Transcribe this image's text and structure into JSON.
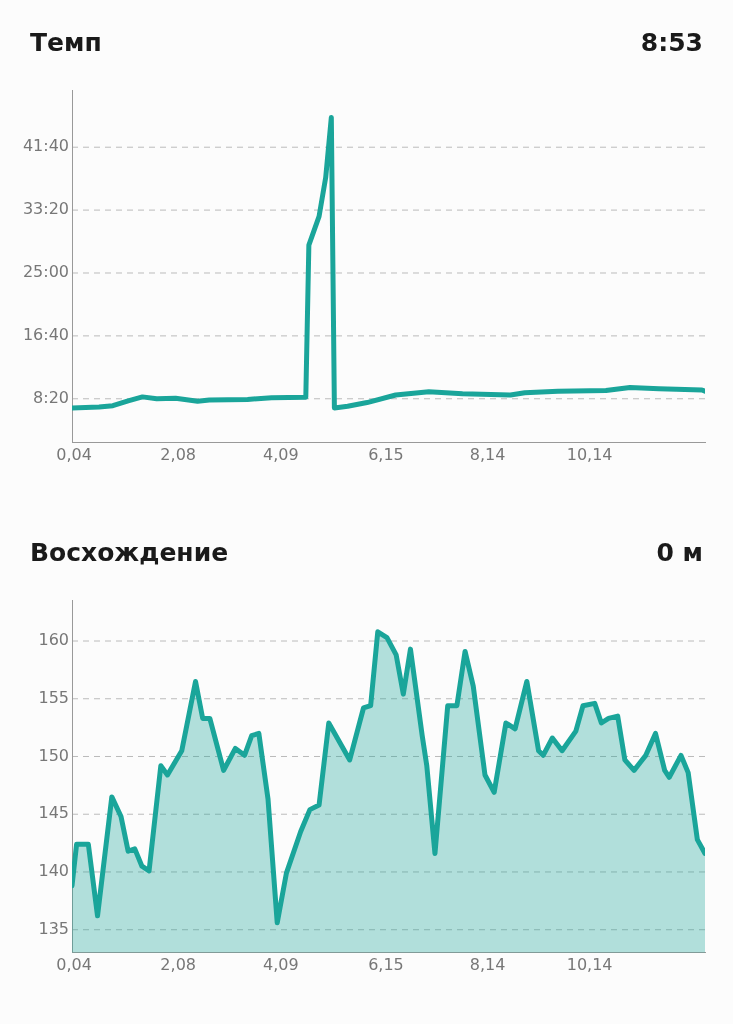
{
  "chart_data": [
    {
      "type": "line",
      "title": "Темп",
      "annotations": [
        "8:53"
      ],
      "series": [
        {
          "color": "#1aa59a",
          "x": [
            0,
            0.53,
            0.8,
            1.1,
            1.38,
            1.66,
            2.03,
            2.46,
            2.69,
            3.44,
            3.91,
            4.58,
            4.64,
            4.84,
            4.97,
            5.08,
            5.14,
            5.4,
            5.78,
            6.34,
            6.99,
            7.65,
            8.59,
            8.87,
            9.52,
            10.46,
            10.93,
            11.5,
            12.34,
            12.4
          ],
          "values": [
            426,
            434,
            445,
            484,
            515,
            500,
            504,
            480,
            490,
            495,
            508,
            512,
            1722,
            1950,
            2260,
            2736,
            426,
            440,
            470,
            530,
            555,
            540,
            530,
            548,
            560,
            565,
            590,
            580,
            570,
            560
          ]
        }
      ],
      "xlim": [
        0,
        12.4
      ],
      "xticks": [
        {
          "value": 0.04,
          "label": "0,04"
        },
        {
          "value": 2.08,
          "label": "2,08"
        },
        {
          "value": 4.09,
          "label": "4,09"
        },
        {
          "value": 6.15,
          "label": "6,15"
        },
        {
          "value": 8.14,
          "label": "8,14"
        },
        {
          "value": 10.14,
          "label": "10,14"
        }
      ],
      "ylim": [
        150,
        2950
      ],
      "yticks": [
        {
          "value": 500,
          "label": "8:20"
        },
        {
          "value": 1000,
          "label": "16:40"
        },
        {
          "value": 1500,
          "label": "25:00"
        },
        {
          "value": 2000,
          "label": "33:20"
        },
        {
          "value": 2500,
          "label": "41:40"
        }
      ],
      "grid": "y",
      "legend": false,
      "marker": "none",
      "line_style": "solid"
    },
    {
      "type": "area",
      "title": "Восхождение",
      "annotations": [
        "0 м"
      ],
      "series": [
        {
          "color": "#1aa59a",
          "x": [
            0,
            0.09,
            0.32,
            0.5,
            0.78,
            0.96,
            1.1,
            1.23,
            1.37,
            1.51,
            1.74,
            1.87,
            2.15,
            2.42,
            2.56,
            2.7,
            2.97,
            3.2,
            3.38,
            3.52,
            3.66,
            3.84,
            4.02,
            4.2,
            4.48,
            4.66,
            4.84,
            5.03,
            5.44,
            5.71,
            5.85,
            5.99,
            6.17,
            6.35,
            6.49,
            6.63,
            6.86,
            6.95,
            7.11,
            7.36,
            7.54,
            7.7,
            7.86,
            8.09,
            8.27,
            8.5,
            8.68,
            8.91,
            9.14,
            9.23,
            9.41,
            9.6,
            9.87,
            10.01,
            10.24,
            10.37,
            10.51,
            10.69,
            10.83,
            11.01,
            11.24,
            11.43,
            11.61,
            11.7,
            11.93,
            12.07,
            12.25,
            12.4
          ],
          "values": [
            138.8,
            142.4,
            142.4,
            136.2,
            146.5,
            144.8,
            141.8,
            142,
            140.5,
            140.1,
            149.2,
            148.4,
            150.5,
            156.5,
            153.3,
            153.3,
            148.8,
            150.7,
            150.1,
            151.8,
            152,
            146.3,
            135.6,
            139.9,
            143.5,
            145.4,
            145.8,
            152.9,
            149.7,
            154.2,
            154.4,
            160.8,
            160.3,
            158.8,
            155.4,
            159.3,
            151.8,
            149.2,
            141.6,
            154.4,
            154.4,
            159.1,
            156.1,
            148.4,
            146.9,
            152.9,
            152.4,
            156.5,
            150.5,
            150.1,
            151.6,
            150.5,
            152.2,
            154.4,
            154.6,
            152.9,
            153.3,
            153.5,
            149.7,
            148.8,
            150.1,
            152,
            148.8,
            148.2,
            150.1,
            148.6,
            142.8,
            141.6
          ]
        }
      ],
      "xlim": [
        0,
        12.4
      ],
      "xticks": [
        {
          "value": 0.04,
          "label": "0,04"
        },
        {
          "value": 2.08,
          "label": "2,08"
        },
        {
          "value": 4.09,
          "label": "4,09"
        },
        {
          "value": 6.15,
          "label": "6,15"
        },
        {
          "value": 8.14,
          "label": "8,14"
        },
        {
          "value": 10.14,
          "label": "10,14"
        }
      ],
      "ylim": [
        133,
        163.5
      ],
      "yticks": [
        135,
        140,
        145,
        150,
        155,
        160
      ],
      "grid": "y",
      "legend": false,
      "marker": "none",
      "line_style": "solid"
    }
  ]
}
